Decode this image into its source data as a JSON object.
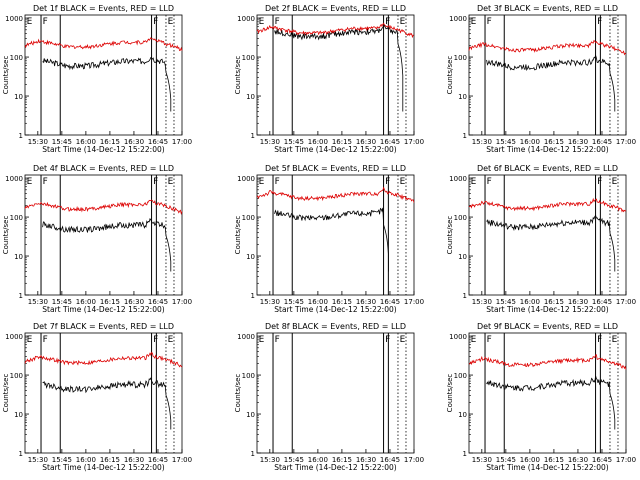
{
  "panel_common": {
    "ylabel": "Counts/sec",
    "xlabel": "Start Time (14-Dec-12 15:22:00)",
    "x_ticks": [
      "15:30",
      "15:45",
      "16:00",
      "16:15",
      "16:30",
      "16:45",
      "17:00"
    ],
    "y_ticks": [
      "1",
      "10",
      "100",
      "1000"
    ]
  },
  "colors": {
    "events": "#000000",
    "lld": "#dd0000"
  },
  "chart_data": [
    {
      "type": "line",
      "title": "Det 1f BLACK = Events, RED = LLD",
      "xlim_minutes": [
        0,
        98
      ],
      "ylim": [
        1,
        1200
      ],
      "y_scale": "log",
      "vlines_solid": [
        10,
        22,
        79,
        82
      ],
      "vlines_dotted": [
        88,
        93
      ],
      "markers": [
        {
          "label": "E",
          "x": 1
        },
        {
          "label": "F",
          "x": 11
        },
        {
          "label": "F",
          "x": 80
        },
        {
          "label": "E",
          "x": 89
        }
      ],
      "series": [
        {
          "name": "Events",
          "color": "#000000",
          "base": 75,
          "drop_at": [
            88,
            91
          ]
        },
        {
          "name": "LLD",
          "color": "#dd0000",
          "base": 230
        }
      ]
    },
    {
      "type": "line",
      "title": "Det 2f BLACK = Events, RED = LLD",
      "xlim_minutes": [
        0,
        98
      ],
      "ylim": [
        1,
        1200
      ],
      "y_scale": "log",
      "vlines_solid": [
        10,
        22,
        79,
        82
      ],
      "vlines_dotted": [
        88,
        93
      ],
      "markers": [
        {
          "label": "E",
          "x": 1
        },
        {
          "label": "F",
          "x": 11
        },
        {
          "label": "F",
          "x": 80
        },
        {
          "label": "E",
          "x": 89
        }
      ],
      "series": [
        {
          "name": "Events",
          "color": "#000000",
          "base": 430,
          "drop_at": [
            88,
            91
          ]
        },
        {
          "name": "LLD",
          "color": "#dd0000",
          "base": 520
        }
      ]
    },
    {
      "type": "line",
      "title": "Det 3f BLACK = Events, RED = LLD",
      "xlim_minutes": [
        0,
        98
      ],
      "ylim": [
        1,
        1200
      ],
      "y_scale": "log",
      "vlines_solid": [
        10,
        22,
        79,
        82
      ],
      "vlines_dotted": [
        88,
        93
      ],
      "markers": [
        {
          "label": "E",
          "x": 1
        },
        {
          "label": "F",
          "x": 11
        },
        {
          "label": "F",
          "x": 80
        },
        {
          "label": "E",
          "x": 89
        }
      ],
      "series": [
        {
          "name": "Events",
          "color": "#000000",
          "base": 70,
          "drop_at": [
            88,
            91
          ]
        },
        {
          "name": "LLD",
          "color": "#dd0000",
          "base": 190
        }
      ]
    },
    {
      "type": "line",
      "title": "Det 4f BLACK = Events, RED = LLD",
      "xlim_minutes": [
        0,
        98
      ],
      "ylim": [
        1,
        1200
      ],
      "y_scale": "log",
      "vlines_solid": [
        10,
        22,
        79,
        82
      ],
      "vlines_dotted": [
        88,
        93
      ],
      "markers": [
        {
          "label": "E",
          "x": 1
        },
        {
          "label": "F",
          "x": 11
        },
        {
          "label": "F",
          "x": 80
        },
        {
          "label": "E",
          "x": 89
        }
      ],
      "series": [
        {
          "name": "Events",
          "color": "#000000",
          "base": 60,
          "drop_at": [
            88,
            91
          ]
        },
        {
          "name": "LLD",
          "color": "#dd0000",
          "base": 200
        }
      ]
    },
    {
      "type": "line",
      "title": "Det 5f BLACK = Events, RED = LLD",
      "xlim_minutes": [
        0,
        98
      ],
      "ylim": [
        1,
        1200
      ],
      "y_scale": "log",
      "vlines_solid": [
        10,
        22,
        79,
        82
      ],
      "vlines_dotted": [
        88,
        93
      ],
      "markers": [
        {
          "label": "E",
          "x": 1
        },
        {
          "label": "F",
          "x": 11
        },
        {
          "label": "F",
          "x": 80
        },
        {
          "label": "E",
          "x": 89
        }
      ],
      "series": [
        {
          "name": "Events",
          "color": "#000000",
          "base": 120,
          "drop_at": [
            79,
            82
          ]
        },
        {
          "name": "LLD",
          "color": "#dd0000",
          "base": 380
        }
      ]
    },
    {
      "type": "line",
      "title": "Det 6f BLACK = Events, RED = LLD",
      "xlim_minutes": [
        0,
        98
      ],
      "ylim": [
        1,
        1200
      ],
      "y_scale": "log",
      "vlines_solid": [
        10,
        22,
        79,
        82
      ],
      "vlines_dotted": [
        88,
        93
      ],
      "markers": [
        {
          "label": "E",
          "x": 1
        },
        {
          "label": "F",
          "x": 11
        },
        {
          "label": "F",
          "x": 80
        },
        {
          "label": "E",
          "x": 89
        }
      ],
      "series": [
        {
          "name": "Events",
          "color": "#000000",
          "base": 70,
          "drop_at": [
            88,
            91
          ]
        },
        {
          "name": "LLD",
          "color": "#dd0000",
          "base": 210
        }
      ]
    },
    {
      "type": "line",
      "title": "Det 7f BLACK = Events, RED = LLD",
      "xlim_minutes": [
        0,
        98
      ],
      "ylim": [
        1,
        1200
      ],
      "y_scale": "log",
      "vlines_solid": [
        10,
        22,
        79,
        82
      ],
      "vlines_dotted": [
        88,
        93
      ],
      "markers": [
        {
          "label": "E",
          "x": 1
        },
        {
          "label": "F",
          "x": 11
        },
        {
          "label": "F",
          "x": 80
        },
        {
          "label": "E",
          "x": 89
        }
      ],
      "series": [
        {
          "name": "Events",
          "color": "#000000",
          "base": 55,
          "drop_at": [
            88,
            91
          ]
        },
        {
          "name": "LLD",
          "color": "#dd0000",
          "base": 260
        }
      ]
    },
    {
      "type": "line",
      "title": "Det 8f BLACK = Events, RED = LLD",
      "xlim_minutes": [
        0,
        98
      ],
      "ylim": [
        1,
        1200
      ],
      "y_scale": "log",
      "vlines_solid": [
        10,
        22,
        79,
        82
      ],
      "vlines_dotted": [
        88,
        93
      ],
      "markers": [
        {
          "label": "E",
          "x": 1
        },
        {
          "label": "F",
          "x": 11
        },
        {
          "label": "F",
          "x": 80
        },
        {
          "label": "E",
          "x": 89
        }
      ],
      "series": []
    },
    {
      "type": "line",
      "title": "Det 9f BLACK = Events, RED = LLD",
      "xlim_minutes": [
        0,
        98
      ],
      "ylim": [
        1,
        1200
      ],
      "y_scale": "log",
      "vlines_solid": [
        10,
        22,
        79,
        82
      ],
      "vlines_dotted": [
        88,
        93
      ],
      "markers": [
        {
          "label": "E",
          "x": 1
        },
        {
          "label": "F",
          "x": 11
        },
        {
          "label": "F",
          "x": 80
        },
        {
          "label": "E",
          "x": 89
        }
      ],
      "series": [
        {
          "name": "Events",
          "color": "#000000",
          "base": 60,
          "drop_at": [
            88,
            91
          ]
        },
        {
          "name": "LLD",
          "color": "#dd0000",
          "base": 230
        }
      ]
    }
  ]
}
